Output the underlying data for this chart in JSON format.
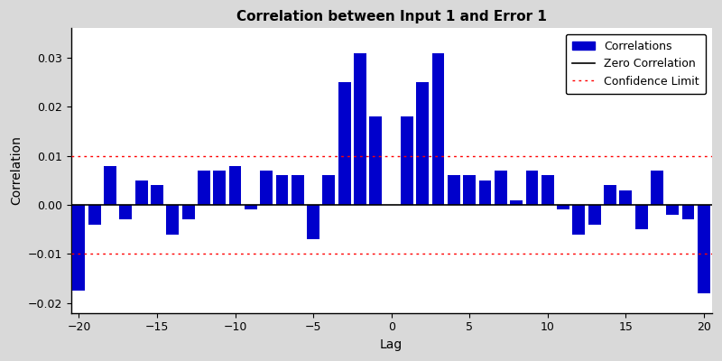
{
  "title": "Correlation between Input 1 and Error 1",
  "xlabel": "Lag",
  "ylabel": "Correlation",
  "confidence_limit": 0.01,
  "ylim": [
    -0.022,
    0.036
  ],
  "xlim": [
    -20.5,
    20.5
  ],
  "bar_color": "#0000cc",
  "zero_line_color": "#000000",
  "conf_line_color": "#ff0000",
  "background_color": "#d9d9d9",
  "axes_background": "#ffffff",
  "lags": [
    -20,
    -19,
    -18,
    -17,
    -16,
    -15,
    -14,
    -13,
    -12,
    -11,
    -10,
    -9,
    -8,
    -7,
    -6,
    -5,
    -4,
    -3,
    -2,
    -1,
    0,
    1,
    2,
    3,
    4,
    5,
    6,
    7,
    8,
    9,
    10,
    11,
    12,
    13,
    14,
    15,
    16,
    17,
    18,
    19,
    20
  ],
  "values": [
    -0.0175,
    -0.004,
    0.008,
    -0.003,
    0.005,
    0.004,
    -0.006,
    -0.003,
    0.007,
    0.007,
    0.008,
    -0.001,
    0.007,
    0.006,
    0.006,
    -0.007,
    0.006,
    0.025,
    0.031,
    0.018,
    0.0,
    0.018,
    0.025,
    0.031,
    0.006,
    0.006,
    0.005,
    0.007,
    0.001,
    0.007,
    0.006,
    -0.001,
    -0.006,
    -0.004,
    0.004,
    0.003,
    -0.005,
    0.007,
    -0.002,
    -0.003,
    -0.018
  ],
  "figsize": [
    8.0,
    4.0
  ],
  "dpi": 100,
  "title_fontsize": 11,
  "label_fontsize": 10,
  "tick_fontsize": 9,
  "legend_fontsize": 9,
  "xticks": [
    -20,
    -15,
    -10,
    -5,
    0,
    5,
    10,
    15,
    20
  ],
  "yticks": [
    -0.02,
    -0.01,
    0.0,
    0.01,
    0.02,
    0.03
  ]
}
